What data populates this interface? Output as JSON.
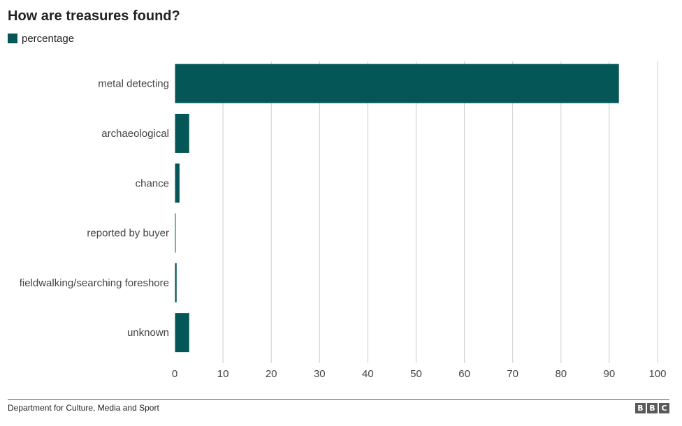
{
  "title": "How are treasures found?",
  "legend": {
    "label": "percentage",
    "color": "#055757"
  },
  "chart_data": {
    "type": "bar",
    "orientation": "horizontal",
    "categories": [
      "metal detecting",
      "archaeological",
      "chance",
      "reported by buyer",
      "fieldwalking/searching foreshore",
      "unknown"
    ],
    "series": [
      {
        "name": "percentage",
        "values": [
          92,
          3,
          1,
          0.2,
          0.4,
          3
        ],
        "color": "#055757"
      }
    ],
    "xlim": [
      0,
      100
    ],
    "xticks": [
      0,
      10,
      20,
      30,
      40,
      50,
      60,
      70,
      80,
      90,
      100
    ],
    "grid": true,
    "gridColor": "#cccccc",
    "legend_position": "top-left"
  },
  "footer": {
    "source": "Department for Culture, Media and Sport",
    "logo_letters": [
      "B",
      "B",
      "C"
    ]
  }
}
